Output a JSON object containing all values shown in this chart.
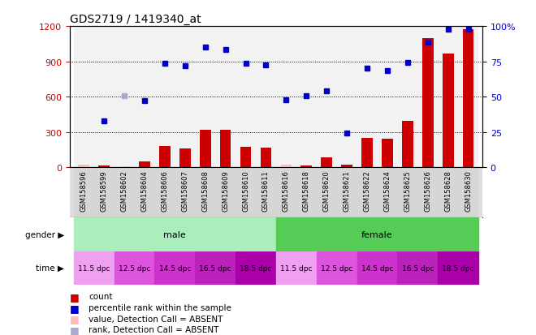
{
  "title": "GDS2719 / 1419340_at",
  "samples": [
    "GSM158596",
    "GSM158599",
    "GSM158602",
    "GSM158604",
    "GSM158606",
    "GSM158607",
    "GSM158608",
    "GSM158609",
    "GSM158610",
    "GSM158611",
    "GSM158616",
    "GSM158618",
    "GSM158620",
    "GSM158621",
    "GSM158622",
    "GSM158624",
    "GSM158625",
    "GSM158626",
    "GSM158628",
    "GSM158630"
  ],
  "red_values": [
    20,
    15,
    8,
    50,
    180,
    160,
    320,
    315,
    175,
    165,
    20,
    12,
    80,
    20,
    250,
    240,
    395,
    1100,
    965,
    1170
  ],
  "red_absent": [
    true,
    false,
    true,
    false,
    false,
    false,
    false,
    false,
    false,
    false,
    true,
    false,
    false,
    false,
    false,
    false,
    false,
    false,
    false,
    false
  ],
  "blue_values": [
    null,
    390,
    610,
    565,
    880,
    860,
    1020,
    1000,
    880,
    870,
    575,
    610,
    650,
    290,
    840,
    820,
    890,
    1060,
    1170,
    1170
  ],
  "blue_absent": [
    false,
    false,
    true,
    false,
    false,
    false,
    false,
    false,
    false,
    false,
    false,
    false,
    false,
    false,
    false,
    false,
    false,
    false,
    false,
    false
  ],
  "gender_male_count": 10,
  "time_labels": [
    "11.5 dpc",
    "12.5 dpc",
    "14.5 dpc",
    "16.5 dpc",
    "18.5 dpc",
    "11.5 dpc",
    "12.5 dpc",
    "14.5 dpc",
    "16.5 dpc",
    "18.5 dpc"
  ],
  "time_colors_cycle": [
    "#f0a0f0",
    "#dd55dd",
    "#cc33cc",
    "#bb22bb",
    "#aa00aa"
  ],
  "ylim_left": [
    0,
    1200
  ],
  "yticks_left": [
    0,
    300,
    600,
    900,
    1200
  ],
  "right_tick_labels": [
    "0",
    "25",
    "50",
    "75",
    "100%"
  ],
  "color_red": "#cc0000",
  "color_red_absent": "#ffbbbb",
  "color_blue": "#0000cc",
  "color_blue_absent": "#aaaacc",
  "color_male": "#aaeebb",
  "color_female": "#55cc55",
  "background_color": "#ffffff",
  "bar_width": 0.55,
  "legend_items": [
    {
      "color": "#cc0000",
      "label": "count"
    },
    {
      "color": "#0000cc",
      "label": "percentile rank within the sample"
    },
    {
      "color": "#ffbbbb",
      "label": "value, Detection Call = ABSENT"
    },
    {
      "color": "#aaaacc",
      "label": "rank, Detection Call = ABSENT"
    }
  ]
}
